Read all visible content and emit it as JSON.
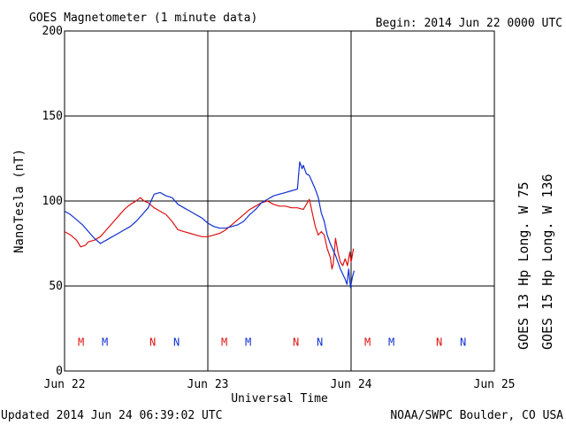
{
  "chart_data": {
    "type": "line",
    "title": "GOES Magnetometer (1 minute data)",
    "begin_label": "Begin:  2014 Jun 22 0000 UTC",
    "xlabel": "Universal Time",
    "ylabel": "NanoTesla (nT)",
    "x_tick_labels": [
      "Jun 22",
      "Jun 23",
      "Jun 24",
      "Jun 25"
    ],
    "x_range_hours": [
      0,
      72
    ],
    "y_ticks": [
      0,
      50,
      100,
      150,
      200
    ],
    "ylim": [
      0,
      200
    ],
    "grid": true,
    "series": [
      {
        "name": "GOES 13 Hp  Long. W 75",
        "color": "#e01010",
        "points": [
          [
            0,
            82
          ],
          [
            1,
            80
          ],
          [
            2,
            77
          ],
          [
            2.7,
            73
          ],
          [
            3.5,
            74
          ],
          [
            4,
            76
          ],
          [
            5,
            77
          ],
          [
            6,
            79
          ],
          [
            7,
            83
          ],
          [
            8,
            87
          ],
          [
            9,
            91
          ],
          [
            10,
            95
          ],
          [
            11,
            98
          ],
          [
            12,
            100
          ],
          [
            12.7,
            102
          ],
          [
            13.3,
            100
          ],
          [
            14,
            99
          ],
          [
            15,
            96
          ],
          [
            16,
            94
          ],
          [
            17,
            92
          ],
          [
            18,
            88
          ],
          [
            19,
            83
          ],
          [
            20,
            82
          ],
          [
            21,
            81
          ],
          [
            22,
            80
          ],
          [
            23,
            79
          ],
          [
            24,
            79
          ],
          [
            25,
            80
          ],
          [
            26,
            81
          ],
          [
            27,
            83
          ],
          [
            28,
            86
          ],
          [
            29,
            89
          ],
          [
            30,
            92
          ],
          [
            31,
            95
          ],
          [
            32,
            97
          ],
          [
            33,
            99
          ],
          [
            34,
            100
          ],
          [
            35,
            98
          ],
          [
            36,
            97
          ],
          [
            37,
            97
          ],
          [
            38,
            96
          ],
          [
            39,
            96
          ],
          [
            40,
            95
          ],
          [
            41,
            101
          ],
          [
            41.5,
            93
          ],
          [
            42,
            85
          ],
          [
            42.5,
            80
          ],
          [
            43,
            82
          ],
          [
            43.5,
            80
          ],
          [
            44,
            72
          ],
          [
            44.5,
            67
          ],
          [
            44.8,
            60
          ],
          [
            45,
            63
          ],
          [
            45.4,
            78
          ],
          [
            45.8,
            70
          ],
          [
            46.2,
            64
          ],
          [
            46.6,
            62
          ],
          [
            47,
            66
          ],
          [
            47.4,
            62
          ],
          [
            47.8,
            70
          ],
          [
            48,
            64
          ],
          [
            48.4,
            72
          ]
        ]
      },
      {
        "name": "GOES 15 Hp  Long. W 136",
        "color": "#1030d0",
        "points": [
          [
            0,
            94
          ],
          [
            1,
            92
          ],
          [
            2,
            89
          ],
          [
            3,
            86
          ],
          [
            4,
            82
          ],
          [
            5,
            78
          ],
          [
            6,
            75
          ],
          [
            7,
            77
          ],
          [
            8,
            79
          ],
          [
            9,
            81
          ],
          [
            10,
            83
          ],
          [
            11,
            85
          ],
          [
            12,
            88
          ],
          [
            13,
            92
          ],
          [
            14,
            96
          ],
          [
            14.5,
            100
          ],
          [
            15,
            104
          ],
          [
            16,
            105
          ],
          [
            17,
            103
          ],
          [
            18,
            102
          ],
          [
            19,
            98
          ],
          [
            20,
            96
          ],
          [
            21,
            94
          ],
          [
            22,
            92
          ],
          [
            23,
            90
          ],
          [
            24,
            87
          ],
          [
            25,
            85
          ],
          [
            26,
            84
          ],
          [
            27,
            84
          ],
          [
            28,
            85
          ],
          [
            29,
            86
          ],
          [
            30,
            88
          ],
          [
            31,
            92
          ],
          [
            32,
            95
          ],
          [
            33,
            99
          ],
          [
            34,
            101
          ],
          [
            35,
            103
          ],
          [
            36,
            104
          ],
          [
            37,
            105
          ],
          [
            38,
            106
          ],
          [
            39,
            107
          ],
          [
            39.4,
            123
          ],
          [
            39.8,
            119
          ],
          [
            40,
            121
          ],
          [
            40.5,
            116
          ],
          [
            41,
            115
          ],
          [
            41.5,
            111
          ],
          [
            42,
            107
          ],
          [
            42.5,
            102
          ],
          [
            43,
            93
          ],
          [
            43.5,
            88
          ],
          [
            44,
            80
          ],
          [
            44.5,
            75
          ],
          [
            45,
            71
          ],
          [
            45.4,
            68
          ],
          [
            45.8,
            64
          ],
          [
            46.2,
            60
          ],
          [
            46.6,
            57
          ],
          [
            47,
            54
          ],
          [
            47.3,
            51
          ],
          [
            47.6,
            60
          ],
          [
            47.9,
            49
          ],
          [
            48.2,
            55
          ],
          [
            48.5,
            59
          ]
        ]
      }
    ],
    "markers": [
      {
        "label": "M",
        "color": "#e01010",
        "hour": 2.75
      },
      {
        "label": "M",
        "color": "#1030d0",
        "hour": 6.75
      },
      {
        "label": "N",
        "color": "#e01010",
        "hour": 14.75
      },
      {
        "label": "N",
        "color": "#1030d0",
        "hour": 18.75
      },
      {
        "label": "M",
        "color": "#e01010",
        "hour": 26.75
      },
      {
        "label": "M",
        "color": "#1030d0",
        "hour": 30.75
      },
      {
        "label": "N",
        "color": "#e01010",
        "hour": 38.75
      },
      {
        "label": "N",
        "color": "#1030d0",
        "hour": 42.75
      },
      {
        "label": "M",
        "color": "#e01010",
        "hour": 50.75
      },
      {
        "label": "M",
        "color": "#1030d0",
        "hour": 54.75
      },
      {
        "label": "N",
        "color": "#e01010",
        "hour": 62.75
      },
      {
        "label": "N",
        "color": "#1030d0",
        "hour": 66.75
      }
    ],
    "marker_level": 17
  },
  "footer": {
    "updated": "Updated 2014 Jun 24 06:39:02 UTC",
    "source": "NOAA/SWPC Boulder, CO USA"
  }
}
